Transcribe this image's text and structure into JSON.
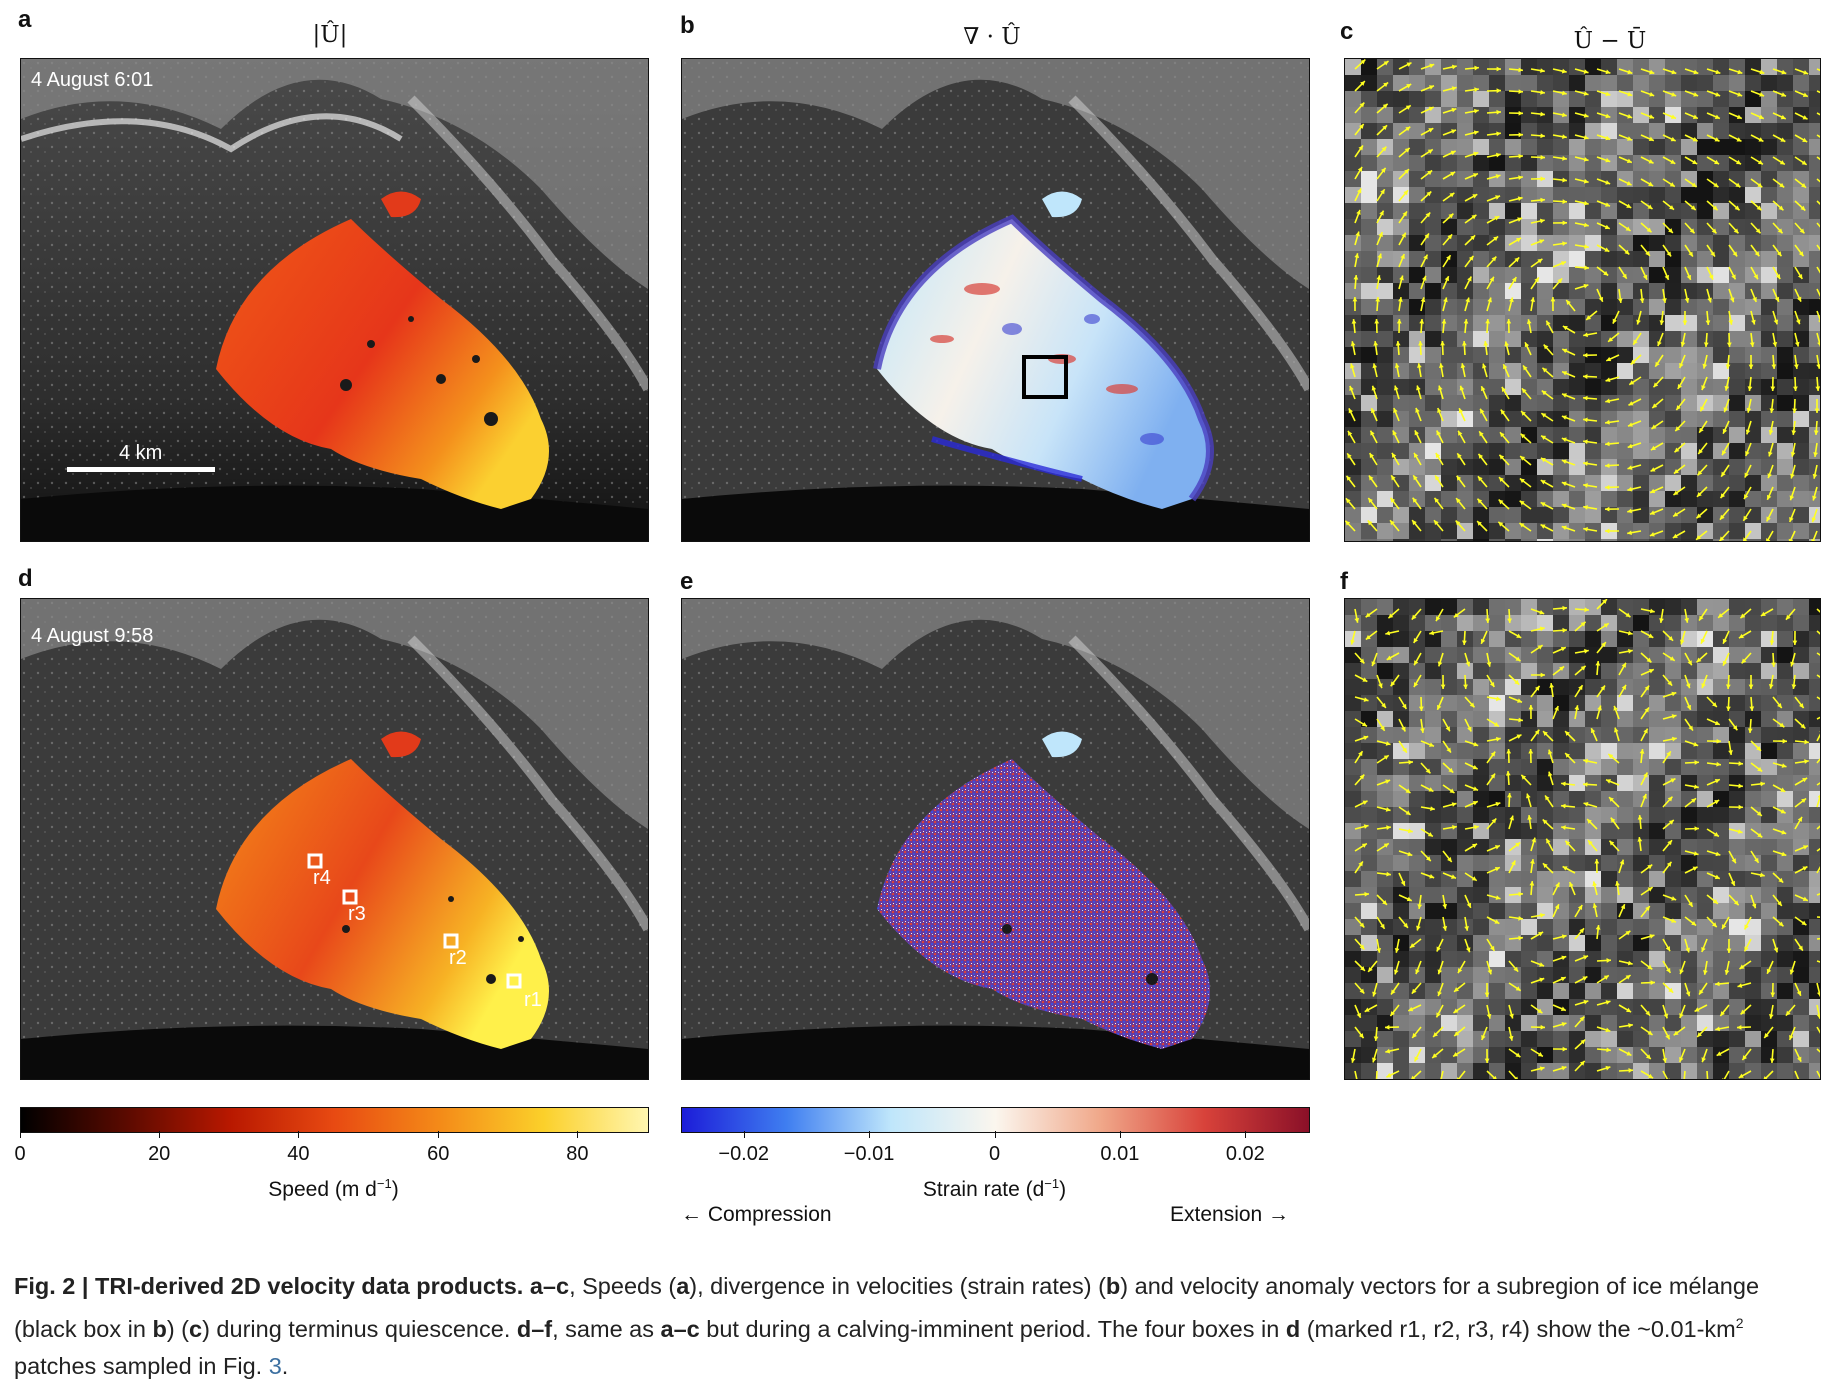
{
  "panels": {
    "a": {
      "label": "a",
      "title": "|Û|",
      "timestamp": "4 August 6:01",
      "scale_bar": "4 km"
    },
    "b": {
      "label": "b",
      "title": "∇ · Û"
    },
    "c": {
      "label": "c",
      "title": "Û − Ū"
    },
    "d": {
      "label": "d",
      "timestamp": "4 August 9:58",
      "patches": [
        "r4",
        "r3",
        "r2",
        "r1"
      ]
    },
    "e": {
      "label": "e"
    },
    "f": {
      "label": "f"
    }
  },
  "speed_colorbar": {
    "ticks": [
      "0",
      "20",
      "40",
      "60",
      "80"
    ],
    "label": "Speed (m d",
    "label_sup": "−1",
    "label_end": ")",
    "colors": [
      "#000000",
      "#5a0a00",
      "#b81800",
      "#e84a12",
      "#f48a18",
      "#fbd02a",
      "#fff6b0"
    ]
  },
  "strain_colorbar": {
    "ticks": [
      "−0.02",
      "−0.01",
      "0",
      "0.01",
      "0.02"
    ],
    "label": "Strain rate (d",
    "label_sup": "−1",
    "label_end": ")",
    "left_note": "← Compression",
    "right_note": "Extension →",
    "colors": [
      "#1c1cd8",
      "#3f7ef0",
      "#bfe6fb",
      "#fbf6ee",
      "#f0a88a",
      "#d8423a",
      "#8a1028"
    ]
  },
  "caption": {
    "fig": "Fig. 2 | TRI-derived 2D velocity data products.",
    "ac": "a–c",
    "t1": ", Speeds (",
    "a": "a",
    "t2": "), divergence in velocities (strain rates) (",
    "b": "b",
    "t3": ") and velocity anomaly vectors for a subregion of ice mélange (black box in ",
    "b2": "b",
    "t4": ") (",
    "c": "c",
    "t5": ") during terminus quiescence. ",
    "df": "d–f",
    "t6": ", same as ",
    "ac2": "a–c",
    "t7": " but during a calving-imminent period. The four boxes in ",
    "d": "d",
    "t8": " (marked r1, r2, r3, r4) show the ~0.01-km",
    "sup": "2",
    "t9": " patches sampled in Fig. ",
    "ref": "3",
    "t10": "."
  }
}
